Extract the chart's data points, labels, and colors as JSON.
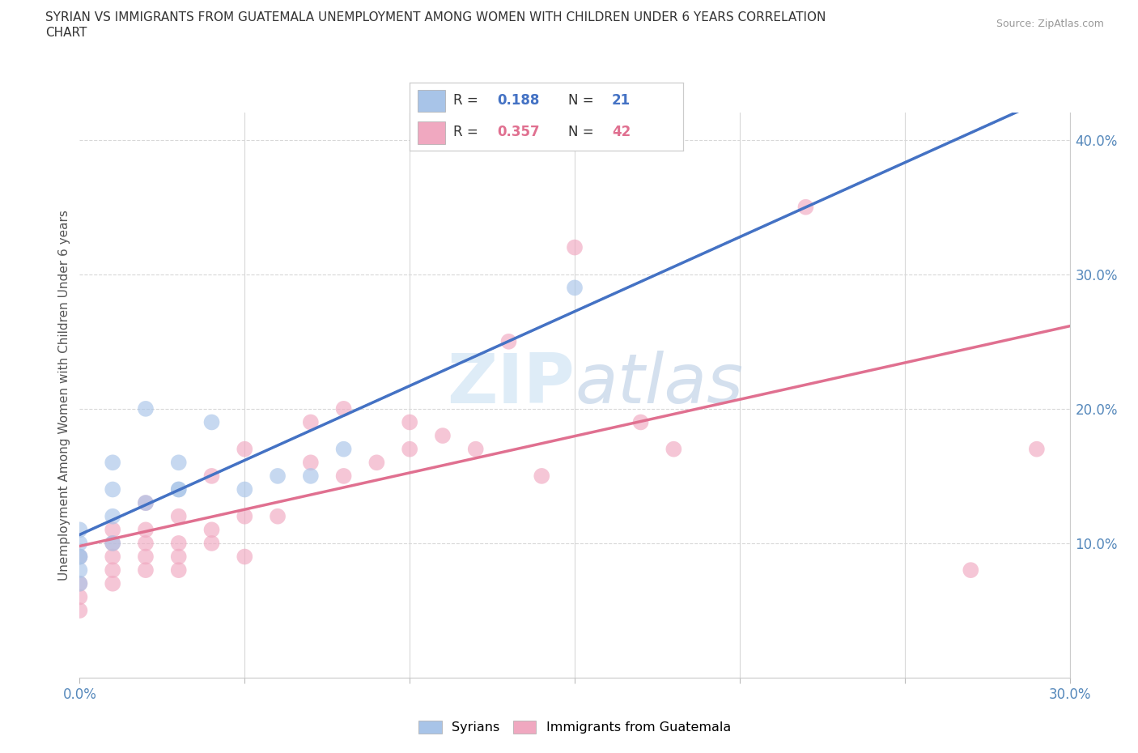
{
  "title_line1": "SYRIAN VS IMMIGRANTS FROM GUATEMALA UNEMPLOYMENT AMONG WOMEN WITH CHILDREN UNDER 6 YEARS CORRELATION",
  "title_line2": "CHART",
  "source": "Source: ZipAtlas.com",
  "ylabel": "Unemployment Among Women with Children Under 6 years",
  "xlim": [
    0.0,
    0.3
  ],
  "ylim": [
    0.0,
    0.42
  ],
  "xtick_vals": [
    0.0,
    0.05,
    0.1,
    0.15,
    0.2,
    0.25,
    0.3
  ],
  "xtick_labels": [
    "0.0%",
    "",
    "",
    "",
    "",
    "",
    "30.0%"
  ],
  "ytick_vals": [
    0.1,
    0.2,
    0.3,
    0.4
  ],
  "ytick_labels_right": [
    "10.0%",
    "20.0%",
    "30.0%",
    "40.0%"
  ],
  "r_syrian": 0.188,
  "n_syrian": 21,
  "r_guatemala": 0.357,
  "n_guatemala": 42,
  "syrian_color": "#a8c4e8",
  "guatemala_color": "#f0a8c0",
  "syrian_line_color": "#4472c4",
  "guatemala_line_color": "#e07090",
  "watermark_text": "ZIPatlas",
  "background_color": "#ffffff",
  "grid_color": "#d8d8d8",
  "syrian_x": [
    0.0,
    0.0,
    0.0,
    0.0,
    0.0,
    0.0,
    0.01,
    0.01,
    0.01,
    0.01,
    0.02,
    0.02,
    0.03,
    0.03,
    0.03,
    0.04,
    0.05,
    0.06,
    0.07,
    0.08,
    0.15
  ],
  "syrian_y": [
    0.07,
    0.08,
    0.09,
    0.09,
    0.1,
    0.11,
    0.1,
    0.12,
    0.14,
    0.16,
    0.13,
    0.2,
    0.14,
    0.14,
    0.16,
    0.19,
    0.14,
    0.15,
    0.15,
    0.17,
    0.29
  ],
  "guatemala_x": [
    0.0,
    0.0,
    0.0,
    0.0,
    0.01,
    0.01,
    0.01,
    0.01,
    0.01,
    0.02,
    0.02,
    0.02,
    0.02,
    0.02,
    0.03,
    0.03,
    0.03,
    0.03,
    0.04,
    0.04,
    0.04,
    0.05,
    0.05,
    0.05,
    0.06,
    0.07,
    0.07,
    0.08,
    0.08,
    0.09,
    0.1,
    0.1,
    0.11,
    0.12,
    0.13,
    0.14,
    0.15,
    0.17,
    0.18,
    0.22,
    0.27,
    0.29
  ],
  "guatemala_y": [
    0.05,
    0.06,
    0.07,
    0.09,
    0.07,
    0.08,
    0.09,
    0.1,
    0.11,
    0.08,
    0.09,
    0.1,
    0.11,
    0.13,
    0.08,
    0.09,
    0.1,
    0.12,
    0.1,
    0.11,
    0.15,
    0.09,
    0.12,
    0.17,
    0.12,
    0.16,
    0.19,
    0.15,
    0.2,
    0.16,
    0.17,
    0.19,
    0.18,
    0.17,
    0.25,
    0.15,
    0.32,
    0.19,
    0.17,
    0.35,
    0.08,
    0.17
  ]
}
